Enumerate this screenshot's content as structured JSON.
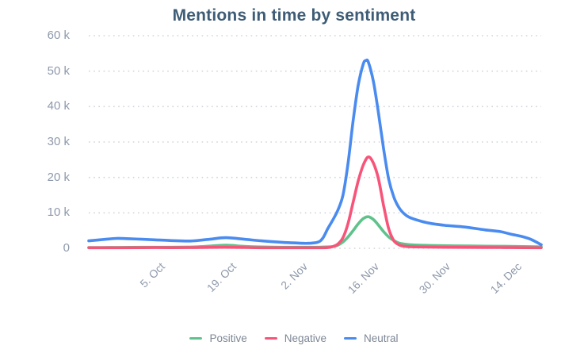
{
  "colors": {
    "title": "#3e5c76",
    "axis_label": "#8e99ab",
    "legend_label": "#7d8795",
    "grid": "#d0d4db",
    "background": "#ffffff"
  },
  "chart_data": {
    "type": "line",
    "title": "Mentions in time by sentiment",
    "grid": "dotted horizontal lines",
    "legend_position": "bottom",
    "value_unit": "mentions, thousands (k)",
    "x_axis": {
      "tick_labels": [
        "5. Oct",
        "19. Oct",
        "2. Nov",
        "16. Nov",
        "30. Nov",
        "14. Dec"
      ],
      "tick_days": [
        13,
        27,
        41,
        55,
        69,
        83
      ],
      "domain_days": [
        0,
        89
      ],
      "labels_rotated_deg": -45
    },
    "y_axis": {
      "tick_labels": [
        "60 k",
        "50 k",
        "40 k",
        "30 k",
        "20 k",
        "10 k",
        "0"
      ],
      "tick_values_k": [
        60,
        50,
        40,
        30,
        20,
        10,
        0
      ],
      "range_k": [
        0,
        60
      ]
    },
    "series": [
      {
        "name": "Positive",
        "color": "#5fc28c",
        "peak": {
          "value_k": 8.9,
          "near_label": "16. Nov"
        },
        "points_day_valueK": [
          [
            0,
            0.2
          ],
          [
            6,
            0.25
          ],
          [
            13,
            0.3
          ],
          [
            20,
            0.35
          ],
          [
            23,
            0.55
          ],
          [
            27,
            0.9
          ],
          [
            30,
            0.6
          ],
          [
            33,
            0.4
          ],
          [
            38,
            0.3
          ],
          [
            43,
            0.3
          ],
          [
            46,
            0.35
          ],
          [
            48,
            0.5
          ],
          [
            49,
            0.9
          ],
          [
            50,
            1.8
          ],
          [
            51,
            3.2
          ],
          [
            52,
            5.0
          ],
          [
            53,
            6.9
          ],
          [
            54,
            8.4
          ],
          [
            55,
            8.9
          ],
          [
            56,
            8.1
          ],
          [
            57,
            6.5
          ],
          [
            58,
            4.7
          ],
          [
            59,
            3.2
          ],
          [
            60,
            2.2
          ],
          [
            61,
            1.5
          ],
          [
            62,
            1.2
          ],
          [
            64,
            0.95
          ],
          [
            67,
            0.8
          ],
          [
            72,
            0.7
          ],
          [
            78,
            0.6
          ],
          [
            83,
            0.55
          ],
          [
            89,
            0.4
          ]
        ]
      },
      {
        "name": "Negative",
        "color": "#f8547a",
        "peak": {
          "value_k": 25.8,
          "near_label": "16. Nov"
        },
        "points_day_valueK": [
          [
            0,
            0.15
          ],
          [
            6,
            0.15
          ],
          [
            13,
            0.2
          ],
          [
            20,
            0.2
          ],
          [
            27,
            0.3
          ],
          [
            34,
            0.15
          ],
          [
            41,
            0.15
          ],
          [
            45,
            0.15
          ],
          [
            47,
            0.2
          ],
          [
            48,
            0.5
          ],
          [
            49,
            1.2
          ],
          [
            50,
            3.0
          ],
          [
            51,
            7.0
          ],
          [
            52,
            13.0
          ],
          [
            53,
            19.0
          ],
          [
            54,
            23.5
          ],
          [
            55,
            25.8
          ],
          [
            56,
            24.0
          ],
          [
            57,
            19.5
          ],
          [
            58,
            12.0
          ],
          [
            59,
            5.5
          ],
          [
            60,
            2.2
          ],
          [
            61,
            1.0
          ],
          [
            62,
            0.6
          ],
          [
            64,
            0.4
          ],
          [
            70,
            0.3
          ],
          [
            78,
            0.25
          ],
          [
            83,
            0.2
          ],
          [
            89,
            0.15
          ]
        ]
      },
      {
        "name": "Neutral",
        "color": "#4a8bf0",
        "peak": {
          "value_k": 53,
          "near_label": "16. Nov"
        },
        "points_day_valueK": [
          [
            0,
            2.1
          ],
          [
            3,
            2.5
          ],
          [
            5.5,
            2.8
          ],
          [
            8,
            2.7
          ],
          [
            10.5,
            2.55
          ],
          [
            13,
            2.4
          ],
          [
            16,
            2.2
          ],
          [
            20,
            2.05
          ],
          [
            24,
            2.6
          ],
          [
            27,
            3.0
          ],
          [
            31,
            2.5
          ],
          [
            34,
            2.1
          ],
          [
            38,
            1.7
          ],
          [
            41,
            1.5
          ],
          [
            43,
            1.4
          ],
          [
            45,
            1.7
          ],
          [
            46,
            2.8
          ],
          [
            47,
            5.5
          ],
          [
            48,
            8.0
          ],
          [
            49,
            10.8
          ],
          [
            50,
            15.0
          ],
          [
            51,
            24.0
          ],
          [
            52,
            36.0
          ],
          [
            53,
            46.0
          ],
          [
            54,
            52.0
          ],
          [
            54.5,
            53.0
          ],
          [
            55,
            52.5
          ],
          [
            56,
            47.0
          ],
          [
            57,
            38.0
          ],
          [
            58,
            28.0
          ],
          [
            59,
            19.5
          ],
          [
            60,
            14.5
          ],
          [
            61,
            11.5
          ],
          [
            62,
            9.8
          ],
          [
            63,
            8.8
          ],
          [
            65,
            7.8
          ],
          [
            67,
            7.1
          ],
          [
            70,
            6.5
          ],
          [
            74,
            6.0
          ],
          [
            78,
            5.2
          ],
          [
            81,
            4.7
          ],
          [
            83,
            4.0
          ],
          [
            85,
            3.4
          ],
          [
            87,
            2.5
          ],
          [
            89,
            1.0
          ]
        ]
      }
    ]
  }
}
